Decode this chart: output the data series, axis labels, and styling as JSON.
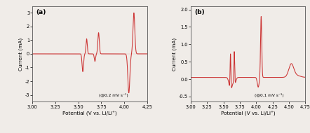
{
  "panel_a": {
    "label": "(a)",
    "xlim": [
      3.0,
      4.25
    ],
    "xticks": [
      3.0,
      3.25,
      3.5,
      3.75,
      4.0,
      4.25
    ],
    "xtick_labels": [
      "3.00",
      "3.25",
      "3.50",
      "3.75",
      "4.00",
      "4.25"
    ],
    "ylim": [
      -3.5,
      3.5
    ],
    "yticks": [
      -3,
      -2,
      -1,
      0,
      1,
      2,
      3
    ],
    "ytick_labels": [
      "-3",
      "-2",
      "-1",
      "0",
      "1",
      "2",
      "3"
    ],
    "xlabel": "Potential (V vs. Li/Li⁺)",
    "ylabel": "Current (mA)",
    "annotation": "(@0.2 mV s⁻¹)",
    "color": "#cc3333"
  },
  "panel_b": {
    "label": "(b)",
    "xlim": [
      3.0,
      4.75
    ],
    "xticks": [
      3.0,
      3.25,
      3.5,
      3.75,
      4.0,
      4.25,
      4.5,
      4.75
    ],
    "xtick_labels": [
      "3.00",
      "3.25",
      "3.50",
      "3.75",
      "4.00",
      "4.25",
      "4.50",
      "4.75"
    ],
    "ylim": [
      -0.65,
      2.1
    ],
    "yticks": [
      -0.5,
      0.0,
      0.5,
      1.0,
      1.5,
      2.0
    ],
    "ytick_labels": [
      "-0.5",
      "0.0",
      "0.5",
      "1.0",
      "1.5",
      "2.0"
    ],
    "xlabel": "Potential (V vs. Li/Li⁺)",
    "ylabel": "Current (mA)",
    "annotation": "(@0.1 mV s⁻¹)",
    "color": "#cc3333"
  },
  "bg_color": "#f0ece8",
  "fig_bg": "#f0ece8"
}
